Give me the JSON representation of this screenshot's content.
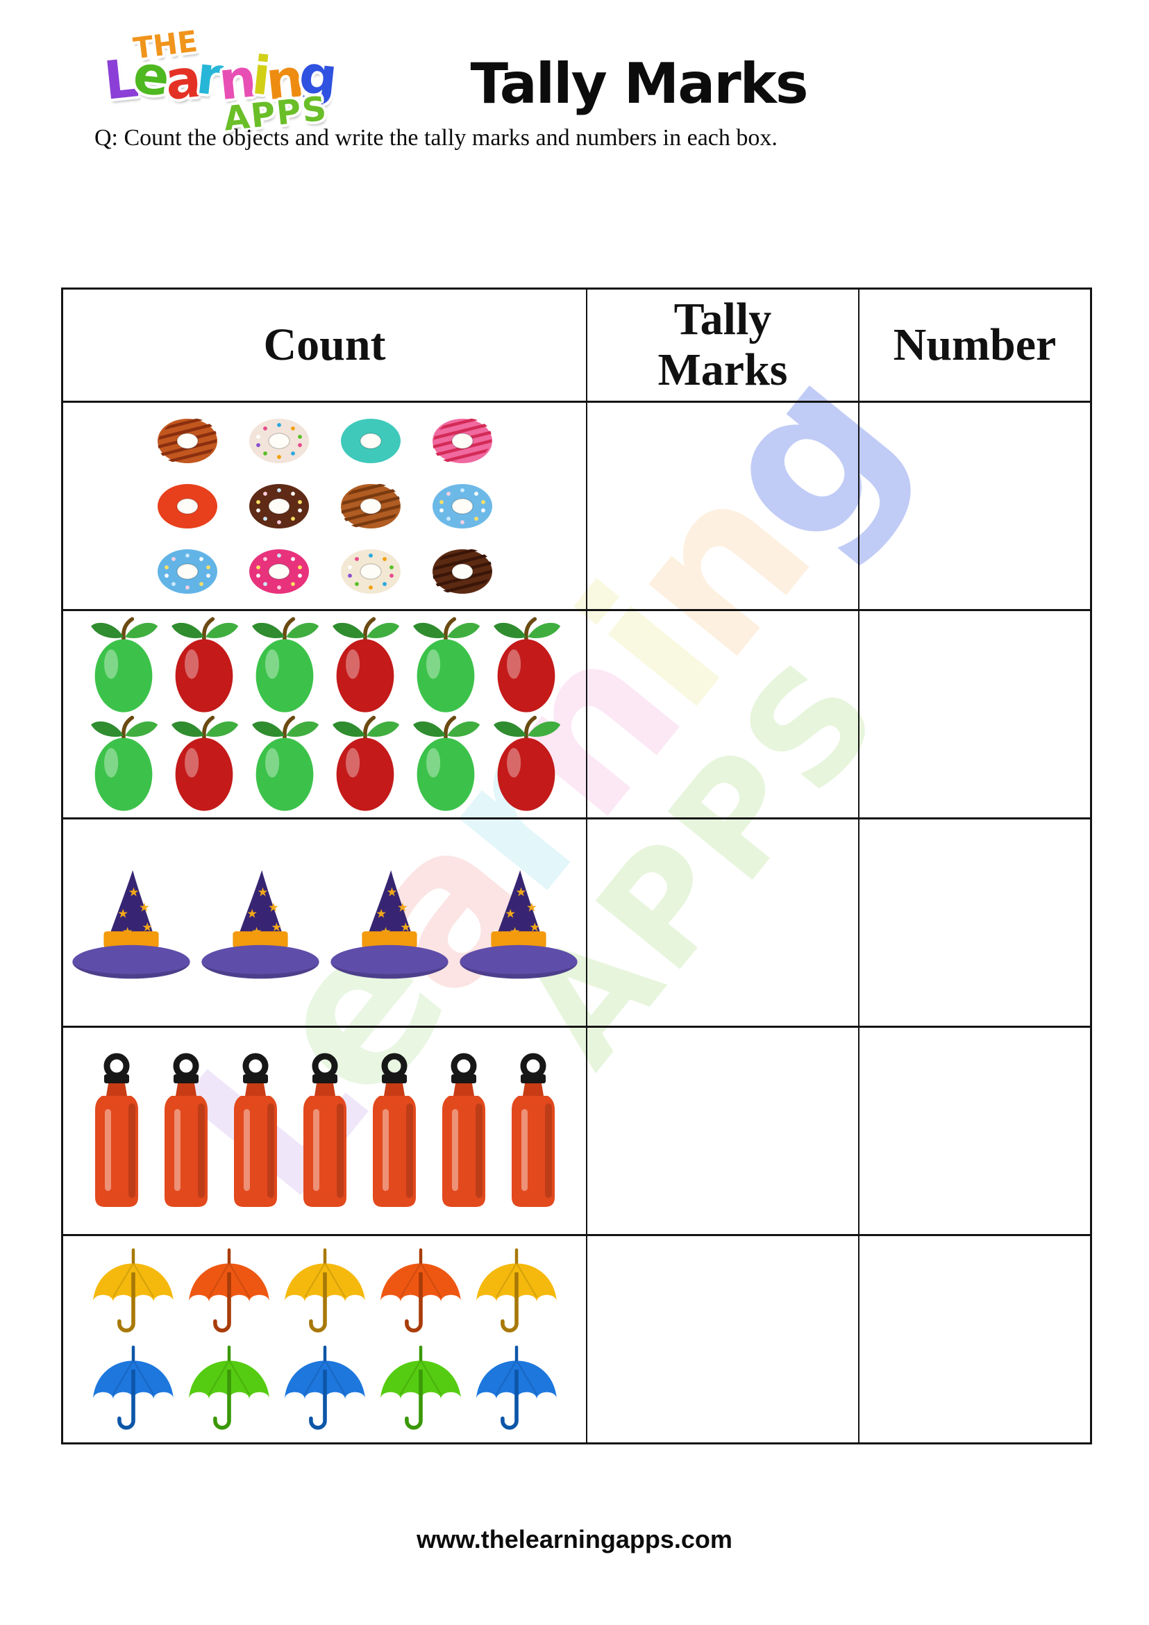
{
  "page": {
    "title": "Tally Marks",
    "question": "Q: Count the objects and write the tally marks and numbers in each box.",
    "footer": "www.thelearningapps.com",
    "border_color": "#141414",
    "background": "#ffffff"
  },
  "logo": {
    "the": "THE",
    "the_color": "#f0941c",
    "learning_letters": [
      {
        "ch": "L",
        "color": "#8b3fd6"
      },
      {
        "ch": "e",
        "color": "#4db81f"
      },
      {
        "ch": "a",
        "color": "#e33225"
      },
      {
        "ch": "r",
        "color": "#27b6d8"
      },
      {
        "ch": "n",
        "color": "#e84fb4"
      },
      {
        "ch": "i",
        "color": "#d2d016"
      },
      {
        "ch": "n",
        "color": "#ee8c12"
      },
      {
        "ch": "g",
        "color": "#2f52e0"
      }
    ],
    "apps": "APPS",
    "apps_color": "#6abe28"
  },
  "table": {
    "headers": [
      "Count",
      "Tally Marks",
      "Number"
    ],
    "rows": [
      {
        "object": "donut",
        "count": 12,
        "per_row": 4,
        "donuts": [
          {
            "color": "#c2571f",
            "deco": "stripes",
            "stripe": "#8a2f0f"
          },
          {
            "color": "#f2e4da",
            "deco": "sprinkles",
            "spr": "multi"
          },
          {
            "color": "#3fc9bb",
            "deco": "plain"
          },
          {
            "color": "#f0699f",
            "deco": "stripes",
            "stripe": "#d42a57"
          },
          {
            "color": "#e8401c",
            "deco": "plain"
          },
          {
            "color": "#5f2a16",
            "deco": "sprinkles",
            "spr": "light"
          },
          {
            "color": "#b05c22",
            "deco": "stripes",
            "stripe": "#7a3a10"
          },
          {
            "color": "#6cb9e8",
            "deco": "sprinkles",
            "spr": "light"
          },
          {
            "color": "#62b4e6",
            "deco": "sprinkles",
            "spr": "light"
          },
          {
            "color": "#e8327c",
            "deco": "sprinkles",
            "spr": "light"
          },
          {
            "color": "#f2e8d4",
            "deco": "sprinkles",
            "spr": "multi"
          },
          {
            "color": "#5c2a12",
            "deco": "stripes",
            "stripe": "#3a1608"
          }
        ]
      },
      {
        "object": "apple",
        "count": 12,
        "per_row": 6,
        "colors": [
          "#3cc24a",
          "#c41a1a",
          "#3cc24a",
          "#c41a1a",
          "#3cc24a",
          "#c41a1a",
          "#3cc24a",
          "#c41a1a",
          "#3cc24a",
          "#c41a1a",
          "#3cc24a",
          "#c41a1a"
        ]
      },
      {
        "object": "witch-hat",
        "count": 4,
        "per_row": 4,
        "cone_color": "#372573",
        "brim_color": "#5f4daa",
        "band_color": "#f39a0d",
        "star_color": "#f2a818"
      },
      {
        "object": "bottle",
        "count": 7,
        "per_row": 7,
        "body_color": "#e2491d",
        "neck_color": "#c83c15",
        "cap_color": "#171717"
      },
      {
        "object": "umbrella",
        "count": 10,
        "per_row": 5,
        "umbrellas": [
          {
            "color": "#f5b90d",
            "stem": "#a87808"
          },
          {
            "color": "#ee5712",
            "stem": "#a83c0a"
          },
          {
            "color": "#f5b90d",
            "stem": "#a87808"
          },
          {
            "color": "#ee5712",
            "stem": "#a83c0a"
          },
          {
            "color": "#f5b90d",
            "stem": "#a87808"
          },
          {
            "color": "#1d77dd",
            "stem": "#0c56a8"
          },
          {
            "color": "#55cc11",
            "stem": "#3a9808"
          },
          {
            "color": "#1d77dd",
            "stem": "#0c56a8"
          },
          {
            "color": "#55cc11",
            "stem": "#3a9808"
          },
          {
            "color": "#1d77dd",
            "stem": "#0c56a8"
          }
        ]
      }
    ]
  }
}
